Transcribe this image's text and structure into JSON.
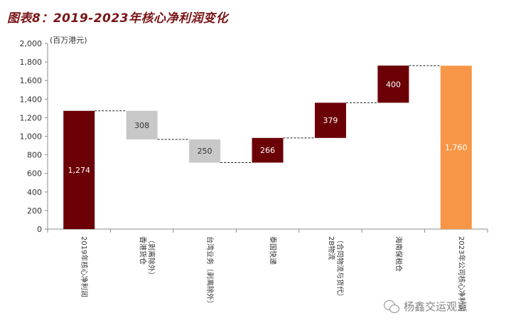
{
  "title": "图表8：2019-2023年核心净利润变化",
  "unit": "(百万港元)",
  "watermark": "杨鑫交运观点",
  "colors": {
    "dark_red": "#6b0006",
    "gray": "#c8c8c8",
    "orange": "#f79646"
  },
  "chart_data": {
    "type": "bar",
    "subtype": "waterfall",
    "title": "图表8：2019-2023年核心净利润变化",
    "ylabel": "(百万港元)",
    "ylim": [
      0,
      2000
    ],
    "yticks": [
      0,
      200,
      400,
      600,
      800,
      1000,
      1200,
      1400,
      1600,
      1800,
      2000
    ],
    "ytick_labels": [
      "0",
      "200",
      "400",
      "600",
      "800",
      "1,000",
      "1,200",
      "1,400",
      "1,600",
      "1,800",
      "2,000"
    ],
    "categories": [
      "2019年核心净利润",
      "香港货仓（剥离除外）",
      "台湾业务（剥离除外）",
      "泰国快递",
      "2B物流（合同物流与货代）",
      "海南保税仓",
      "2023年公司核心净利润"
    ],
    "category_lines": [
      [
        "2019年核心净利润"
      ],
      [
        "香港货仓",
        "（剥离除外）"
      ],
      [
        "台湾业务（剥离除外）"
      ],
      [
        "泰国快递"
      ],
      [
        "2B物流",
        "（合同物流与货代）"
      ],
      [
        "海南保税仓"
      ],
      [
        "2023年公司核心净利润"
      ]
    ],
    "bars": [
      {
        "base": 0,
        "top": 1274,
        "label": "1,274",
        "kind": "total"
      },
      {
        "base": 966,
        "top": 1274,
        "label": "308",
        "kind": "decrease"
      },
      {
        "base": 716,
        "top": 966,
        "label": "250",
        "kind": "decrease"
      },
      {
        "base": 716,
        "top": 982,
        "label": "266",
        "kind": "increase"
      },
      {
        "base": 982,
        "top": 1361,
        "label": "379",
        "kind": "increase"
      },
      {
        "base": 1361,
        "top": 1761,
        "label": "400",
        "kind": "increase"
      },
      {
        "base": 0,
        "top": 1760,
        "label": "1,760",
        "kind": "final"
      }
    ],
    "connectors": [
      1274,
      966,
      716,
      982,
      1361,
      1761
    ],
    "grid": false,
    "legend": "none"
  }
}
